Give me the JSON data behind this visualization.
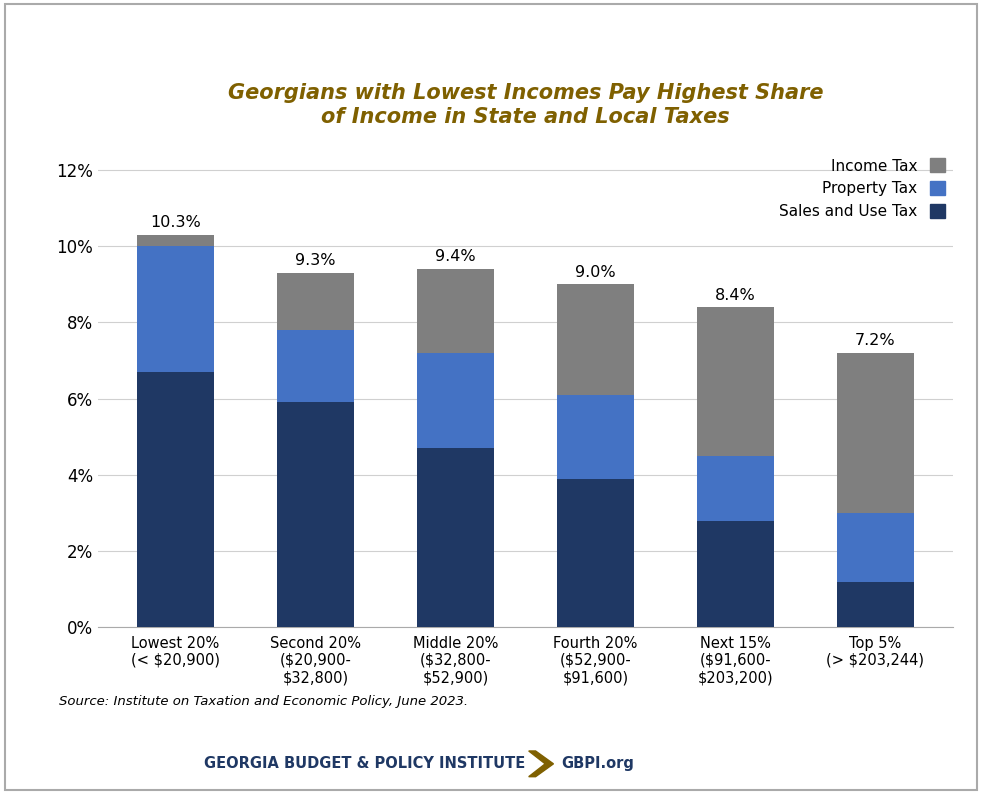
{
  "categories": [
    "Lowest 20%\n(< $20,900)",
    "Second 20%\n($20,900-\n$32,800)",
    "Middle 20%\n($32,800-\n$52,900)",
    "Fourth 20%\n($52,900-\n$91,600)",
    "Next 15%\n($91,600-\n$203,200)",
    "Top 5%\n(> $203,244)"
  ],
  "sales_and_use_tax": [
    6.7,
    5.9,
    4.7,
    3.9,
    2.8,
    1.2
  ],
  "property_tax": [
    3.3,
    1.9,
    2.5,
    2.2,
    1.7,
    1.8
  ],
  "income_tax": [
    0.3,
    1.5,
    2.2,
    2.9,
    3.9,
    4.2
  ],
  "totals": [
    10.3,
    9.3,
    9.4,
    9.0,
    8.4,
    7.2
  ],
  "total_labels": [
    "10.3%",
    "9.3%",
    "9.4%",
    "9.0%",
    "8.4%",
    "7.2%"
  ],
  "color_sales": "#1f3864",
  "color_property": "#4472c4",
  "color_income": "#7f7f7f",
  "title_line1": "Georgians with Lowest Incomes Pay Highest Share",
  "title_line2": "of Income in State and Local Taxes",
  "title_color": "#7f6000",
  "ylim": [
    0,
    12.5
  ],
  "yticks": [
    0,
    2,
    4,
    6,
    8,
    10,
    12
  ],
  "ytick_labels": [
    "0%",
    "2%",
    "4%",
    "6%",
    "8%",
    "10%",
    "12%"
  ],
  "legend_labels": [
    "Income Tax",
    "Property Tax",
    "Sales and Use Tax"
  ],
  "source_text": "Source: Institute on Taxation and Economic Policy, June 2023.",
  "footer_left": "GEORGIA BUDGET & POLICY INSTITUTE",
  "footer_right": "GBPI.org",
  "footer_color": "#1f3864",
  "footer_icon_color": "#7f6000"
}
